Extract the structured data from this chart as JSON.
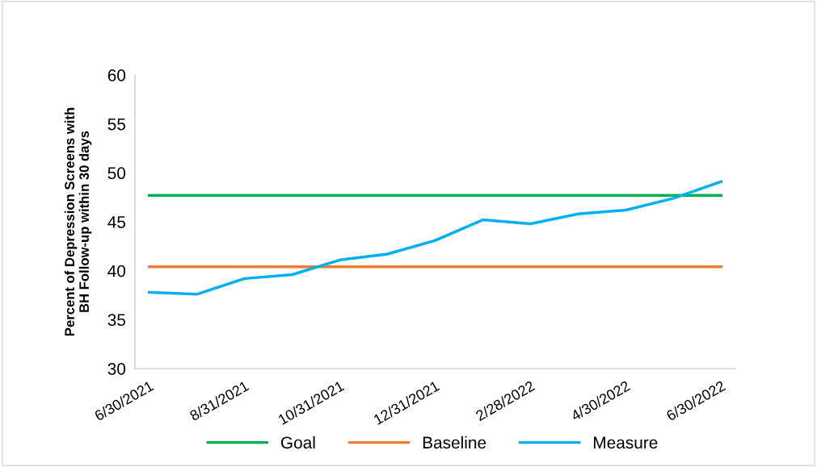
{
  "chart_data": {
    "type": "line",
    "ylabel": "Percent of Depression Screens with\nBH Follow-up within 30 days",
    "categories": [
      "6/30/2021",
      null,
      "8/31/2021",
      null,
      "10/31/2021",
      null,
      "12/31/2021",
      null,
      "2/28/2022",
      null,
      "4/30/2022",
      null,
      "6/30/2022"
    ],
    "series": [
      {
        "name": "Goal",
        "color": "#00b050",
        "values": [
          47.7,
          47.7,
          47.7,
          47.7,
          47.7,
          47.7,
          47.7,
          47.7,
          47.7,
          47.7,
          47.7,
          47.7,
          47.7
        ]
      },
      {
        "name": "Baseline",
        "color": "#ed7d31",
        "values": [
          40.4,
          40.4,
          40.4,
          40.4,
          40.4,
          40.4,
          40.4,
          40.4,
          40.4,
          40.4,
          40.4,
          40.4,
          40.4
        ]
      },
      {
        "name": "Measure",
        "color": "#00b0f0",
        "values": [
          37.8,
          37.6,
          39.2,
          39.6,
          41.1,
          41.7,
          43.1,
          45.2,
          44.8,
          45.8,
          46.2,
          47.4,
          49.1
        ]
      }
    ],
    "ylim": [
      30,
      60
    ],
    "yticks": [
      30,
      35,
      40,
      45,
      50,
      55,
      60
    ],
    "grid": false,
    "legend": "bottom",
    "marker": "none",
    "line_style": "solid"
  }
}
